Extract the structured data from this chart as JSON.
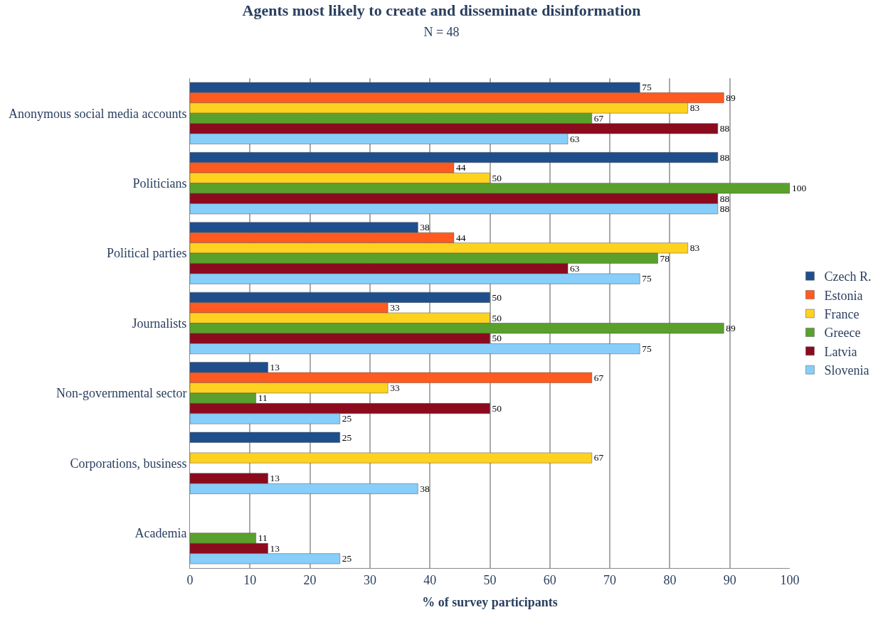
{
  "chart_data": {
    "type": "bar",
    "orientation": "horizontal",
    "title": "Agents most likely to create and disseminate disinformation",
    "subtitle": "N = 48",
    "xlabel": "% of survey participants",
    "categories": [
      "Anonymous social media accounts",
      "Politicians",
      "Political parties",
      "Journalists",
      "Non-governmental sector",
      "Corporations, business",
      "Academia"
    ],
    "series": [
      {
        "name": "Czech R.",
        "color": "#1f4e8c",
        "values": [
          75,
          88,
          38,
          50,
          13,
          25,
          null
        ]
      },
      {
        "name": "Estonia",
        "color": "#ff5a1f",
        "values": [
          89,
          44,
          44,
          33,
          67,
          null,
          null
        ]
      },
      {
        "name": "France",
        "color": "#ffd21f",
        "values": [
          83,
          50,
          83,
          50,
          33,
          67,
          null
        ]
      },
      {
        "name": "Greece",
        "color": "#5aa02c",
        "values": [
          67,
          100,
          78,
          89,
          11,
          null,
          11
        ]
      },
      {
        "name": "Latvia",
        "color": "#8b0a1e",
        "values": [
          88,
          88,
          63,
          50,
          50,
          13,
          13
        ]
      },
      {
        "name": "Slovenia",
        "color": "#87cefa",
        "values": [
          63,
          88,
          75,
          75,
          25,
          38,
          25
        ]
      }
    ],
    "xlim": [
      0,
      100
    ],
    "xticks": [
      0,
      10,
      20,
      30,
      40,
      50,
      60,
      70,
      80,
      90,
      100
    ],
    "grid": "x",
    "legend": "right",
    "data_labels": true
  }
}
